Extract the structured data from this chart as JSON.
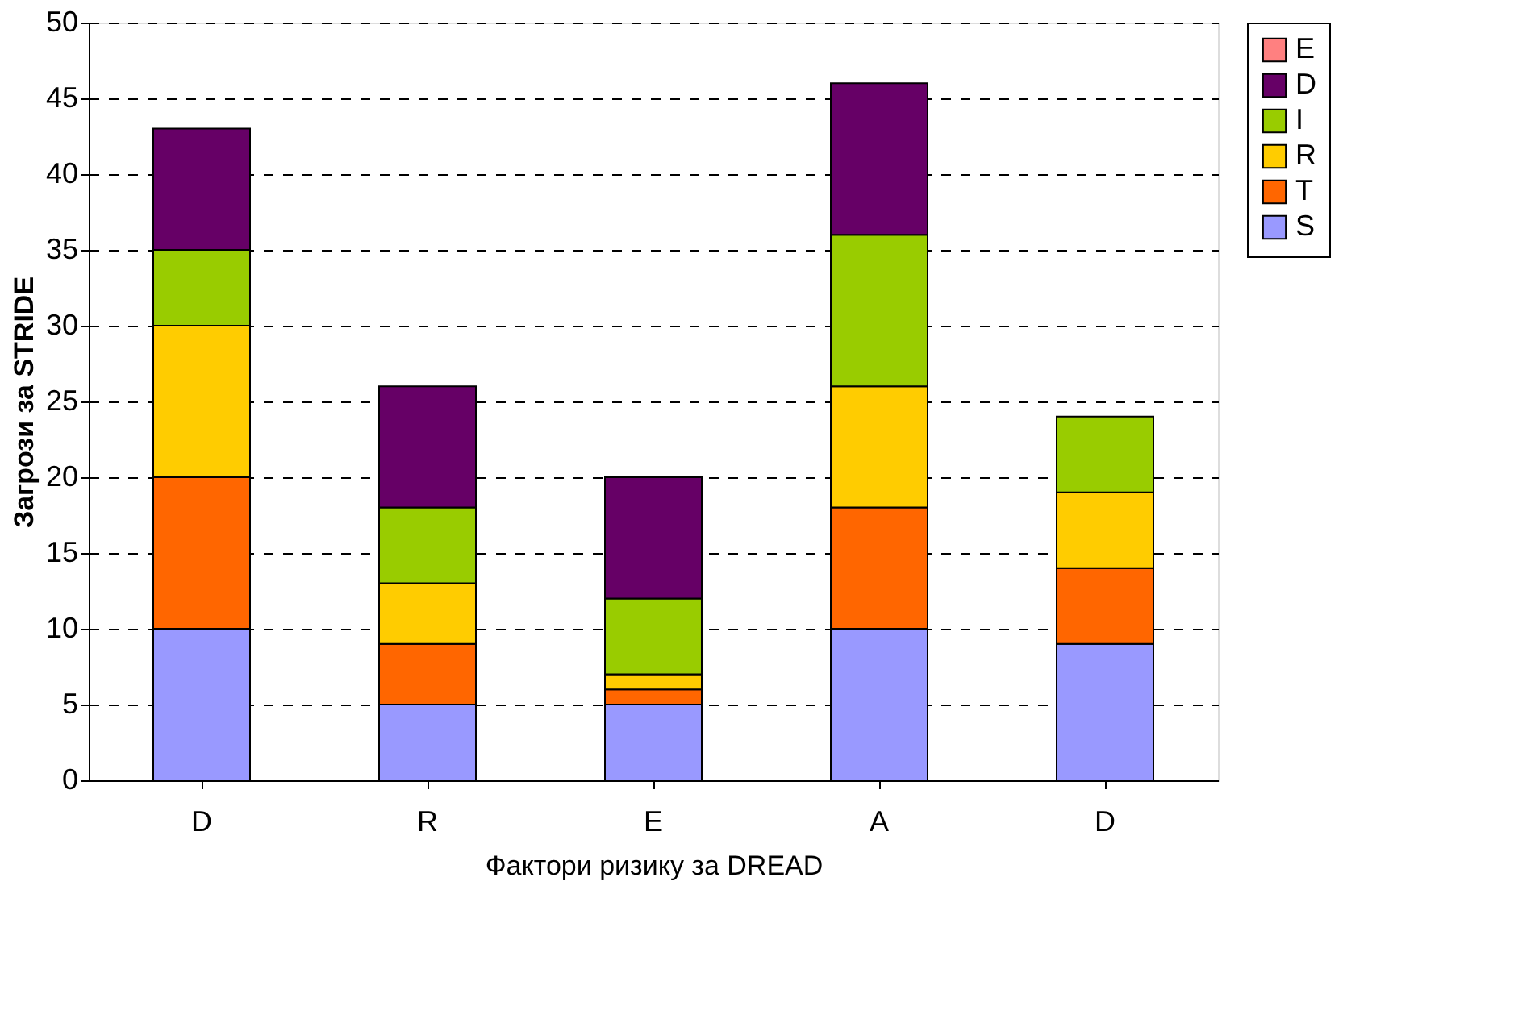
{
  "chart_data": {
    "type": "bar",
    "stacked": true,
    "xlabel": "Фактори ризику за DREAD",
    "ylabel": "Загрози за STRIDE",
    "categories": [
      "D",
      "R",
      "E",
      "A",
      "D"
    ],
    "series": [
      {
        "name": "S",
        "color": "#9999ff",
        "values": [
          10,
          5,
          5,
          10,
          9
        ]
      },
      {
        "name": "T",
        "color": "#ff6600",
        "values": [
          10,
          4,
          1,
          8,
          5
        ]
      },
      {
        "name": "R",
        "color": "#ffcc00",
        "values": [
          10,
          4,
          1,
          8,
          5
        ]
      },
      {
        "name": "I",
        "color": "#99cc00",
        "values": [
          5,
          5,
          5,
          10,
          5
        ]
      },
      {
        "name": "D",
        "color": "#660066",
        "values": [
          8,
          8,
          8,
          10,
          0
        ]
      },
      {
        "name": "E",
        "color": "#ff8080",
        "values": [
          0,
          0,
          0,
          0,
          0
        ]
      }
    ],
    "ylim": [
      0,
      50
    ],
    "yticks": [
      0,
      5,
      10,
      15,
      20,
      25,
      30,
      35,
      40,
      45,
      50
    ],
    "grid": "y",
    "legend": "right"
  }
}
